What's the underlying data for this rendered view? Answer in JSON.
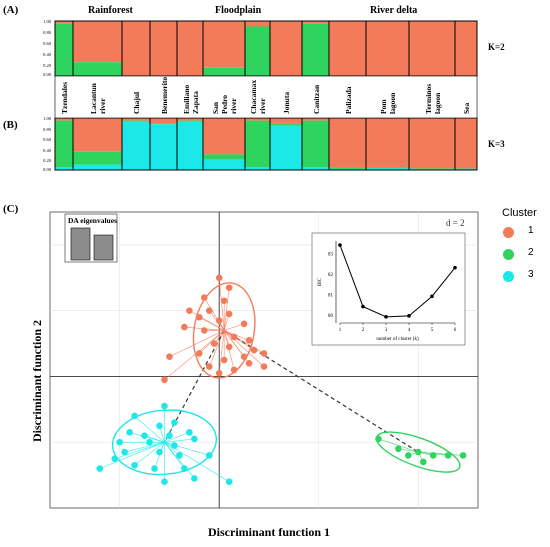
{
  "panels": {
    "a_label": "(A)",
    "b_label": "(B)",
    "c_label": "(C)",
    "k2_label": "K=2",
    "k3_label": "K=3",
    "regions": [
      "Rainforest",
      "Floodplain",
      "River delta"
    ],
    "yticks": [
      "1.00",
      "0.80",
      "0.60",
      "0.40",
      "0.20",
      "0.00"
    ],
    "populations": [
      "Tzendales",
      "Lacantun river",
      "Chajul",
      "Benemerito",
      "Emiliano Zapata",
      "San Pedro river",
      "Chacamax river",
      "Jonuta",
      "Canitzan",
      "Palizada",
      "Pom lagoon",
      "Terminos lagoon",
      "Sea"
    ]
  },
  "colors": {
    "cluster1": "#f47b5a",
    "cluster2": "#2ed45e",
    "cluster3": "#1de8e8"
  },
  "chart_data": [
    {
      "type": "bar",
      "title": "",
      "ylim": [
        0,
        1
      ],
      "k": 2,
      "categories": [
        "Tzendales",
        "Lacantun river",
        "Chajul",
        "Benemerito",
        "Emiliano Zapata",
        "San Pedro river",
        "Chacamax river",
        "Jonuta",
        "Canitzan",
        "Palizada",
        "Pom lagoon",
        "Terminos lagoon",
        "Sea"
      ],
      "series": [
        {
          "name": "1",
          "values": [
            0.05,
            0.75,
            1.0,
            1.0,
            1.0,
            0.85,
            0.1,
            1.0,
            0.05,
            1.0,
            1.0,
            1.0,
            1.0
          ]
        },
        {
          "name": "2",
          "values": [
            0.95,
            0.25,
            0.0,
            0.0,
            0.0,
            0.15,
            0.9,
            0.0,
            0.95,
            0.0,
            0.0,
            0.0,
            0.0
          ]
        }
      ]
    },
    {
      "type": "bar",
      "title": "",
      "ylim": [
        0,
        1
      ],
      "k": 3,
      "categories": [
        "Tzendales",
        "Lacantun river",
        "Chajul",
        "Benemerito",
        "Emiliano Zapata",
        "San Pedro river",
        "Chacamax river",
        "Jonuta",
        "Canitzan",
        "Palizada",
        "Pom lagoon",
        "Terminos lagoon",
        "Sea"
      ],
      "series": [
        {
          "name": "1",
          "values": [
            0.05,
            0.65,
            0.05,
            0.1,
            0.05,
            0.7,
            0.05,
            0.1,
            0.05,
            0.95,
            0.95,
            0.97,
            0.97
          ]
        },
        {
          "name": "2",
          "values": [
            0.9,
            0.25,
            0.02,
            0.02,
            0.02,
            0.1,
            0.9,
            0.05,
            0.9,
            0.03,
            0.02,
            0.01,
            0.01
          ]
        },
        {
          "name": "3",
          "values": [
            0.05,
            0.1,
            0.93,
            0.88,
            0.93,
            0.2,
            0.05,
            0.85,
            0.05,
            0.02,
            0.03,
            0.02,
            0.02
          ]
        }
      ]
    },
    {
      "type": "scatter",
      "title": "",
      "xlabel": "Discriminant function 1",
      "ylabel": "Discriminant function 2",
      "grid_label": "d = 2",
      "legend_title": "Cluster",
      "legend_position": "right",
      "series": [
        {
          "name": "1",
          "points": [
            [
              0.0,
              1.5
            ],
            [
              0.1,
              1.35
            ],
            [
              -0.15,
              1.2
            ],
            [
              0.05,
              1.15
            ],
            [
              -0.3,
              1.0
            ],
            [
              -0.1,
              1.0
            ],
            [
              0.1,
              0.95
            ],
            [
              -0.2,
              0.9
            ],
            [
              0.0,
              0.85
            ],
            [
              0.25,
              0.8
            ],
            [
              -0.35,
              0.75
            ],
            [
              -0.15,
              0.7
            ],
            [
              0.15,
              0.6
            ],
            [
              0.3,
              0.55
            ],
            [
              -0.05,
              0.5
            ],
            [
              0.1,
              0.45
            ],
            [
              0.35,
              0.4
            ],
            [
              0.45,
              0.35
            ],
            [
              0.25,
              0.3
            ],
            [
              -0.2,
              0.35
            ],
            [
              0.05,
              0.25
            ],
            [
              0.3,
              0.2
            ],
            [
              -0.5,
              0.3
            ],
            [
              -0.1,
              0.15
            ],
            [
              0.15,
              0.1
            ],
            [
              0.45,
              0.15
            ],
            [
              -0.55,
              -0.05
            ],
            [
              0.0,
              0.05
            ]
          ],
          "centroid": [
            0.05,
            0.7
          ]
        },
        {
          "name": "2",
          "points": [
            [
              1.6,
              -0.95
            ],
            [
              1.8,
              -1.1
            ],
            [
              1.9,
              -1.2
            ],
            [
              2.0,
              -1.15
            ],
            [
              2.05,
              -1.3
            ],
            [
              2.15,
              -1.2
            ],
            [
              2.3,
              -1.2
            ],
            [
              2.45,
              -1.2
            ]
          ],
          "centroid": [
            2.0,
            -1.15
          ]
        },
        {
          "name": "3",
          "points": [
            [
              -0.55,
              -0.45
            ],
            [
              -0.45,
              -0.7
            ],
            [
              -0.85,
              -0.6
            ],
            [
              -0.6,
              -0.75
            ],
            [
              -0.9,
              -0.85
            ],
            [
              -0.75,
              -0.9
            ],
            [
              -0.5,
              -0.9
            ],
            [
              -0.3,
              -0.85
            ],
            [
              -1.0,
              -1.0
            ],
            [
              -0.7,
              -1.0
            ],
            [
              -0.45,
              -1.05
            ],
            [
              -0.25,
              -0.95
            ],
            [
              -0.95,
              -1.15
            ],
            [
              -1.05,
              -1.25
            ],
            [
              -0.6,
              -1.15
            ],
            [
              -0.4,
              -1.2
            ],
            [
              -0.1,
              -1.2
            ],
            [
              -0.85,
              -1.35
            ],
            [
              -0.65,
              -1.4
            ],
            [
              -0.35,
              -1.4
            ],
            [
              -1.2,
              -1.4
            ],
            [
              -0.55,
              -1.6
            ],
            [
              -0.25,
              -1.55
            ],
            [
              0.1,
              -1.6
            ]
          ],
          "centroid": [
            -0.55,
            -1.0
          ]
        }
      ]
    },
    {
      "type": "bar",
      "title": "DA eigenvalues",
      "values": [
        1.0,
        0.78
      ]
    },
    {
      "type": "line",
      "xlabel": "number of cluster (k)",
      "ylabel": "BIC",
      "x": [
        1,
        2,
        3,
        4,
        5,
        6
      ],
      "y": [
        83.4,
        80.4,
        79.9,
        79.95,
        80.9,
        82.3
      ],
      "xlim": [
        1,
        6
      ],
      "ylim": [
        79.6,
        83.6
      ],
      "xticks": [
        "1",
        "2",
        "3",
        "4",
        "5",
        "6"
      ],
      "yticks": [
        "80",
        "81",
        "82",
        "83"
      ]
    }
  ]
}
